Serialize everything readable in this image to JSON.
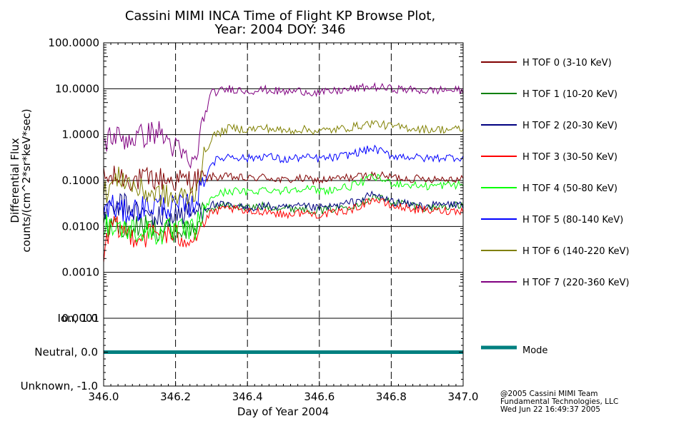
{
  "header": {
    "title_line1": "Cassini MIMI INCA Time of Flight KP Browse Plot,",
    "title_line2": "Year: 2004 DOY: 346"
  },
  "footer": {
    "credit_line1": "@2005 Cassini MIMI Team",
    "credit_line2": "Fundamental Technologies, LLC",
    "credit_line3": "Wed Jun 22 16:49:37 2005"
  },
  "chart_data": [
    {
      "type": "line",
      "panel": "flux",
      "ylabel_line1": "Differential Flux",
      "ylabel_line2": "counts/(cm^2*sr*keV*sec)",
      "yscale": "log",
      "ylim": [
        0.0001,
        100.0
      ],
      "yticks": [
        100.0,
        10.0,
        1.0,
        0.1,
        0.01,
        0.001,
        0.0001
      ],
      "ytick_labels": [
        "100.0000",
        "10.0000",
        "1.0000",
        "0.1000",
        "0.0100",
        "0.0010",
        "0.0001"
      ],
      "xlim": [
        346.0,
        347.0
      ],
      "xticks": [
        346.0,
        346.2,
        346.4,
        346.6,
        346.8,
        347.0
      ],
      "grid": "horizontal solid at decades, vertical dashed at 0.2-day ticks",
      "legend_placement": "right",
      "series": [
        {
          "name": "H TOF 0 (3-10 KeV)",
          "color": "#800000",
          "x": [
            346.0,
            346.02,
            346.05,
            346.1,
            346.15,
            346.2,
            346.25,
            346.28,
            346.3,
            346.35,
            346.4,
            346.45,
            346.5,
            346.55,
            346.6,
            346.65,
            346.7,
            346.75,
            346.8,
            346.85,
            346.9,
            346.95,
            347.0
          ],
          "y": [
            0.11,
            0.11,
            0.12,
            0.1,
            0.11,
            0.1,
            0.1,
            0.11,
            0.12,
            0.12,
            0.11,
            0.12,
            0.1,
            0.11,
            0.1,
            0.11,
            0.12,
            0.13,
            0.12,
            0.11,
            0.11,
            0.11,
            0.11
          ]
        },
        {
          "name": "H TOF 1 (10-20 KeV)",
          "color": "#008000",
          "x": [
            346.0,
            346.02,
            346.05,
            346.1,
            346.15,
            346.2,
            346.25,
            346.28,
            346.3,
            346.35,
            346.4,
            346.45,
            346.5,
            346.55,
            346.6,
            346.65,
            346.7,
            346.75,
            346.8,
            346.85,
            346.9,
            346.95,
            347.0
          ],
          "y": [
            0.01,
            0.012,
            0.008,
            0.01,
            0.009,
            0.008,
            0.009,
            0.02,
            0.025,
            0.03,
            0.025,
            0.028,
            0.025,
            0.025,
            0.022,
            0.025,
            0.03,
            0.045,
            0.035,
            0.03,
            0.025,
            0.028,
            0.028
          ]
        },
        {
          "name": "H TOF 2 (20-30 KeV)",
          "color": "#000080",
          "x": [
            346.0,
            346.02,
            346.05,
            346.1,
            346.15,
            346.2,
            346.25,
            346.28,
            346.3,
            346.35,
            346.4,
            346.45,
            346.5,
            346.55,
            346.6,
            346.65,
            346.7,
            346.75,
            346.8,
            346.85,
            346.9,
            346.95,
            347.0
          ],
          "y": [
            0.025,
            0.02,
            0.03,
            0.02,
            0.015,
            0.018,
            0.02,
            0.025,
            0.03,
            0.028,
            0.025,
            0.028,
            0.025,
            0.027,
            0.025,
            0.028,
            0.035,
            0.05,
            0.035,
            0.03,
            0.028,
            0.03,
            0.03
          ]
        },
        {
          "name": "H TOF 3 (30-50 KeV)",
          "color": "#ff0000",
          "x": [
            346.0,
            346.02,
            346.05,
            346.1,
            346.15,
            346.2,
            346.25,
            346.28,
            346.3,
            346.35,
            346.4,
            346.45,
            346.5,
            346.55,
            346.6,
            346.65,
            346.7,
            346.75,
            346.8,
            346.85,
            346.9,
            346.95,
            347.0
          ],
          "y": [
            0.002,
            0.01,
            0.008,
            0.006,
            0.007,
            0.006,
            0.006,
            0.012,
            0.02,
            0.025,
            0.02,
            0.022,
            0.018,
            0.02,
            0.018,
            0.02,
            0.025,
            0.04,
            0.028,
            0.025,
            0.022,
            0.022,
            0.022
          ]
        },
        {
          "name": "H TOF 4 (50-80 KeV)",
          "color": "#00ff00",
          "x": [
            346.0,
            346.02,
            346.05,
            346.1,
            346.15,
            346.2,
            346.25,
            346.28,
            346.3,
            346.35,
            346.4,
            346.45,
            346.5,
            346.55,
            346.6,
            346.65,
            346.7,
            346.75,
            346.8,
            346.85,
            346.9,
            346.95,
            347.0
          ],
          "y": [
            0.012,
            0.01,
            0.009,
            0.008,
            0.007,
            0.008,
            0.008,
            0.02,
            0.045,
            0.06,
            0.055,
            0.065,
            0.06,
            0.07,
            0.06,
            0.065,
            0.08,
            0.12,
            0.09,
            0.08,
            0.075,
            0.08,
            0.08
          ]
        },
        {
          "name": "H TOF 5 (80-140 KeV)",
          "color": "#0000ff",
          "x": [
            346.0,
            346.02,
            346.05,
            346.1,
            346.15,
            346.2,
            346.25,
            346.28,
            346.3,
            346.35,
            346.4,
            346.45,
            346.5,
            346.55,
            346.6,
            346.65,
            346.7,
            346.75,
            346.8,
            346.85,
            346.9,
            346.95,
            347.0
          ],
          "y": [
            0.02,
            0.03,
            0.02,
            0.025,
            0.03,
            0.025,
            0.03,
            0.1,
            0.25,
            0.35,
            0.3,
            0.35,
            0.28,
            0.32,
            0.3,
            0.32,
            0.4,
            0.5,
            0.35,
            0.33,
            0.3,
            0.32,
            0.32
          ]
        },
        {
          "name": "H TOF 6 (140-220 KeV)",
          "color": "#808000",
          "x": [
            346.0,
            346.02,
            346.05,
            346.1,
            346.15,
            346.2,
            346.25,
            346.28,
            346.3,
            346.35,
            346.4,
            346.45,
            346.5,
            346.55,
            346.6,
            346.65,
            346.7,
            346.75,
            346.8,
            346.85,
            346.9,
            346.95,
            347.0
          ],
          "y": [
            0.05,
            0.08,
            0.12,
            0.06,
            0.05,
            0.04,
            0.05,
            0.3,
            0.9,
            1.4,
            1.3,
            1.4,
            1.2,
            1.3,
            1.2,
            1.3,
            1.5,
            1.8,
            1.5,
            1.4,
            1.3,
            1.3,
            1.3
          ]
        },
        {
          "name": "H TOF 7 (220-360 KeV)",
          "color": "#800080",
          "x": [
            346.0,
            346.02,
            346.05,
            346.1,
            346.15,
            346.2,
            346.25,
            346.28,
            346.3,
            346.35,
            346.4,
            346.45,
            346.5,
            346.55,
            346.6,
            346.65,
            346.7,
            346.75,
            346.8,
            346.85,
            346.9,
            346.95,
            347.0
          ],
          "y": [
            0.6,
            1.0,
            0.8,
            0.9,
            1.2,
            0.5,
            0.2,
            2.5,
            8.0,
            10.0,
            9.0,
            9.5,
            8.5,
            9.0,
            8.0,
            9.0,
            10.0,
            11.0,
            10.0,
            9.5,
            9.0,
            9.5,
            9.0
          ]
        }
      ]
    },
    {
      "type": "line",
      "panel": "mode",
      "ylim": [
        -1.0,
        1.0
      ],
      "ytick_labels": [
        "Ion, 1.0",
        "Neutral, 0.0",
        "Unknown, -1.0"
      ],
      "yticks": [
        1.0,
        0.0,
        -1.0
      ],
      "xlim": [
        346.0,
        347.0
      ],
      "xticks": [
        346.0,
        346.2,
        346.4,
        346.6,
        346.8,
        347.0
      ],
      "xtick_labels": [
        "346.0",
        "346.2",
        "346.4",
        "346.6",
        "346.8",
        "347.0"
      ],
      "xlabel": "Day of Year 2004",
      "legend_placement": "right",
      "series": [
        {
          "name": "Mode",
          "color": "#008080",
          "x": [
            346.0,
            347.0
          ],
          "y": [
            0.0,
            0.0
          ]
        }
      ]
    }
  ]
}
